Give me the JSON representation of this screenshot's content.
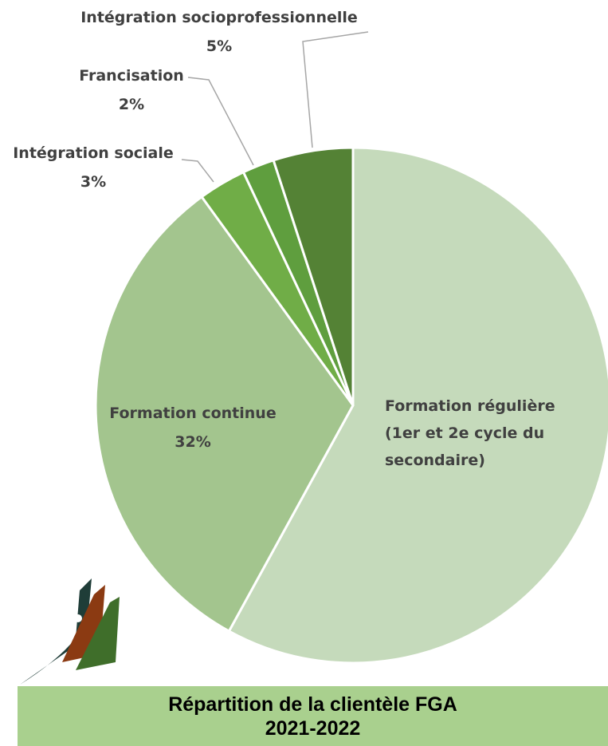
{
  "chart_data": {
    "type": "pie",
    "title": "Répartition de la clientèle FGA",
    "subtitle": "2021-2022",
    "categories": [
      "Formation régulière (1er et 2e cycle du secondaire)",
      "Formation continue",
      "Intégration sociale",
      "Francisation",
      "Intégration socioprofessionnelle"
    ],
    "values": [
      58,
      32,
      3,
      2,
      5
    ],
    "value_labels": [
      null,
      "32%",
      "3%",
      "2%",
      "5%"
    ],
    "colors": [
      "#c5dabb",
      "#a3c58e",
      "#70ad47",
      "#5f9e3e",
      "#548235"
    ]
  }
}
